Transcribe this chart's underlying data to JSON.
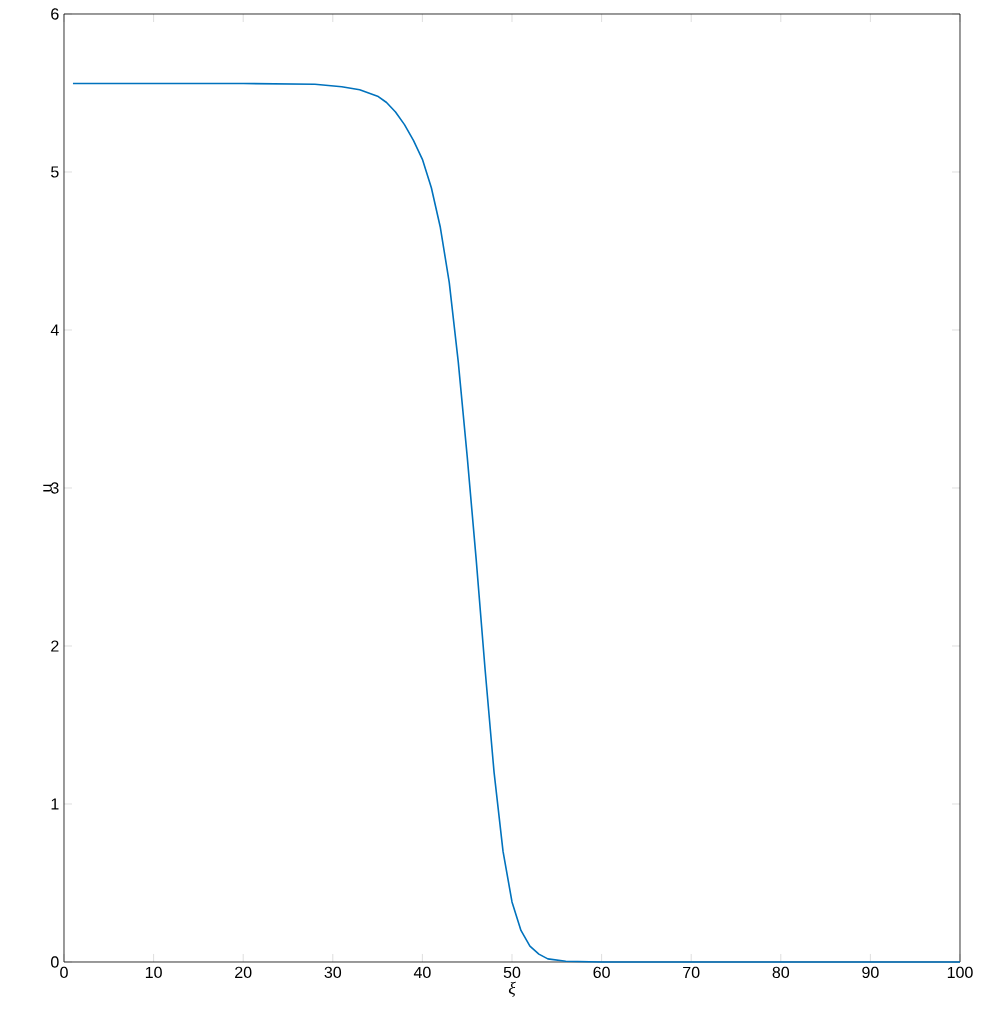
{
  "chart_data": {
    "type": "line",
    "xlabel": "ξ",
    "ylabel": "u",
    "x": [
      1,
      10,
      20,
      28,
      31,
      33,
      35,
      36,
      37,
      38,
      39,
      40,
      41,
      42,
      43,
      44,
      45,
      46,
      47,
      48,
      49,
      50,
      51,
      52,
      53,
      54,
      56,
      60,
      80,
      100
    ],
    "values": [
      5.56,
      5.56,
      5.56,
      5.555,
      5.54,
      5.52,
      5.48,
      5.44,
      5.38,
      5.3,
      5.2,
      5.08,
      4.9,
      4.65,
      4.3,
      3.8,
      3.2,
      2.55,
      1.85,
      1.2,
      0.7,
      0.38,
      0.2,
      0.1,
      0.05,
      0.02,
      0.005,
      0,
      0,
      0
    ],
    "color": "#0072bd",
    "xlim": [
      0,
      100
    ],
    "ylim": [
      0,
      6
    ],
    "xticks": [
      0,
      10,
      20,
      30,
      40,
      50,
      60,
      70,
      80,
      90,
      100
    ],
    "yticks": [
      0,
      1,
      2,
      3,
      4,
      5,
      6
    ]
  }
}
